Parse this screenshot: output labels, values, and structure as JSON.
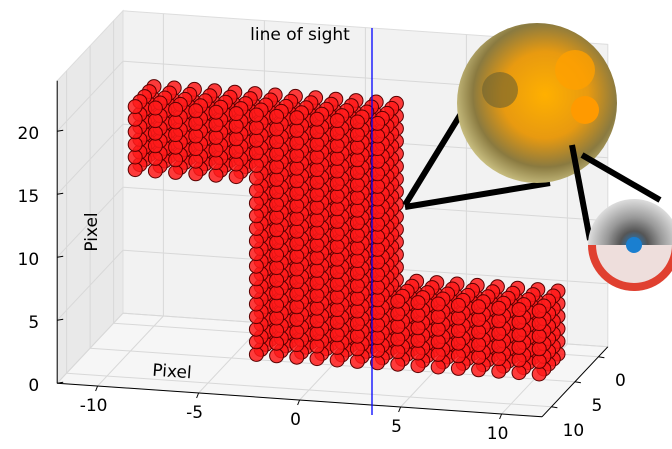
{
  "chart_data": {
    "type": "voxel3d",
    "annotation": "line of sight",
    "xlabel": "Pixel",
    "zlabel": "Pixel",
    "color": "#ff1a1a",
    "xlim": [
      -12,
      12
    ],
    "ylim": [
      -2,
      12
    ],
    "zlim": [
      0,
      24
    ],
    "xticks": [
      -10,
      -5,
      0,
      5,
      10
    ],
    "yticks": [
      0,
      5,
      10
    ],
    "zticks": [
      0,
      5,
      10,
      15,
      20
    ],
    "grid": true,
    "blocks": [
      {
        "x": [
          -10,
          2
        ],
        "y": [
          0,
          4
        ],
        "z": [
          14,
          19
        ]
      },
      {
        "x": [
          -4,
          2
        ],
        "y": [
          0,
          4
        ],
        "z": [
          0,
          13
        ]
      },
      {
        "x": [
          3,
          10
        ],
        "y": [
          0,
          4
        ],
        "z": [
          0,
          5
        ]
      }
    ]
  }
}
